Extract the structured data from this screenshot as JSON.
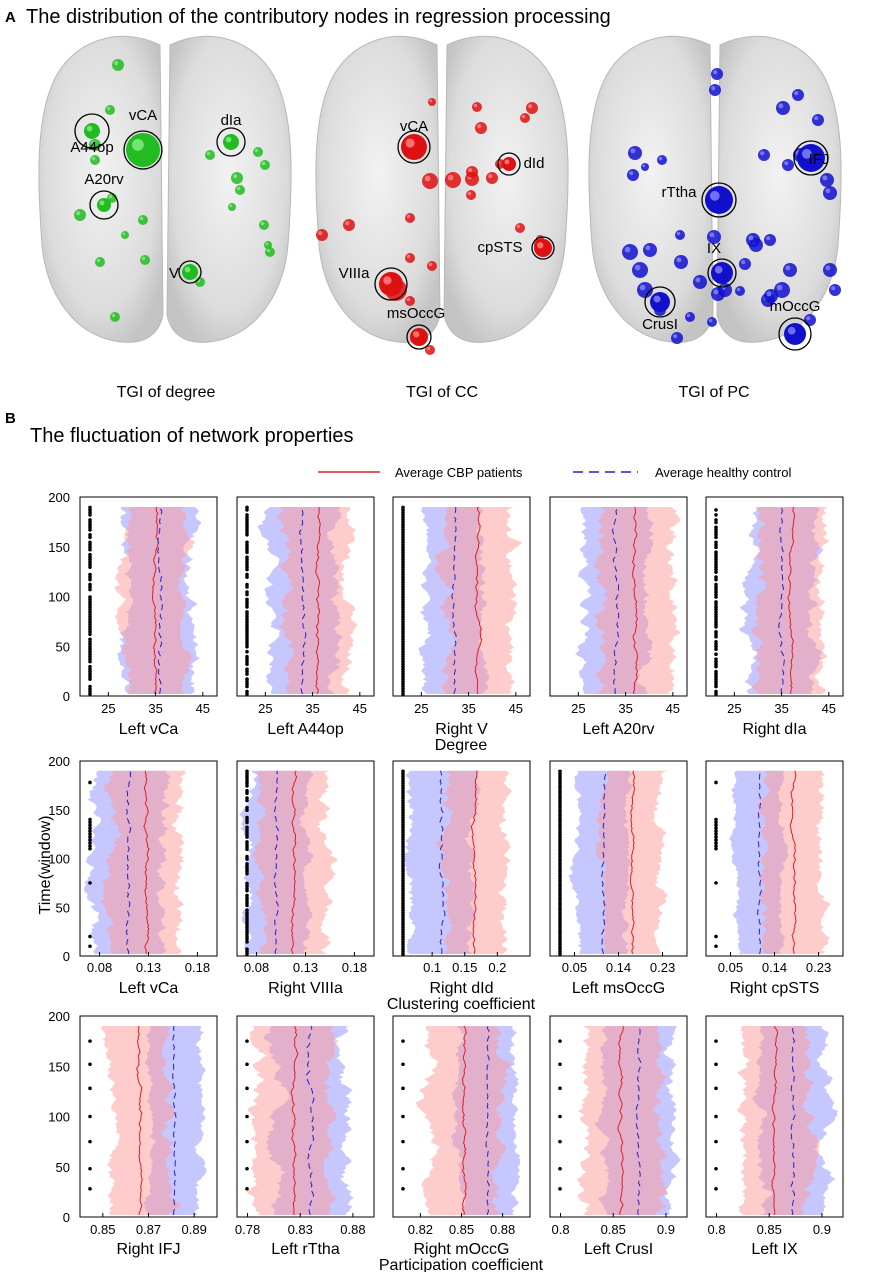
{
  "panel_a": {
    "letter": "A",
    "title": "The distribution of the contributory nodes in regression processing",
    "brains": [
      {
        "caption": "TGI of degree",
        "color": "#22bb22",
        "highlight": "#88ee88",
        "labels": [
          "vCA",
          "A44op",
          "A20rv",
          "dIa",
          "V"
        ]
      },
      {
        "caption": "TGI of CC",
        "color": "#dd1111",
        "highlight": "#ff8888",
        "labels": [
          "vCA",
          "dId",
          "cpSTS",
          "VIIIa",
          "msOccG"
        ]
      },
      {
        "caption": "TGI of PC",
        "color": "#1111cc",
        "highlight": "#8888ff",
        "labels": [
          "rTtha",
          "IFJ",
          "IX",
          "CrusI",
          "mOccG"
        ]
      }
    ]
  },
  "panel_b": {
    "letter": "B",
    "title": "The fluctuation of network properties",
    "legend": {
      "patients": "Average CBP patients",
      "controls": "Average healthy control",
      "patient_color": "#dd2222",
      "control_color": "#2222cc",
      "patient_fill": "#ff9999",
      "control_fill": "#9999ff"
    },
    "y_axis_label": "Time(window)"
  },
  "chart_data": [
    {
      "type": "line",
      "row_label": "Degree",
      "ylim": [
        0,
        200
      ],
      "yticks": [
        "0",
        "50",
        "100",
        "150",
        "200"
      ],
      "panels": [
        {
          "title": "Left vCa",
          "xticks": [
            "25",
            "35",
            "45"
          ],
          "xlim": [
            19,
            48
          ],
          "patient_mean": 35,
          "patient_sd": 6,
          "control_mean": 36,
          "control_sd": 7,
          "dots": "dense"
        },
        {
          "title": "Left A44op",
          "xticks": [
            "25",
            "35",
            "45"
          ],
          "xlim": [
            19,
            48
          ],
          "patient_mean": 36,
          "patient_sd": 7,
          "control_mean": 33,
          "control_sd": 7,
          "dots": "dense"
        },
        {
          "title": "Right V",
          "xticks": [
            "25",
            "35",
            "45"
          ],
          "xlim": [
            19,
            48
          ],
          "patient_mean": 37,
          "patient_sd": 7,
          "control_mean": 32,
          "control_sd": 6,
          "dots": "full"
        },
        {
          "title": "Left A20rv",
          "xticks": [
            "25",
            "35",
            "45"
          ],
          "xlim": [
            19,
            48
          ],
          "patient_mean": 37,
          "patient_sd": 8,
          "control_mean": 33,
          "control_sd": 7,
          "dots": "none"
        },
        {
          "title": "Right dIa",
          "xticks": [
            "25",
            "35",
            "45"
          ],
          "xlim": [
            19,
            48
          ],
          "patient_mean": 37,
          "patient_sd": 7,
          "control_mean": 35,
          "control_sd": 7,
          "dots": "dense"
        }
      ]
    },
    {
      "type": "line",
      "row_label": "Clustering coefficient",
      "ylim": [
        0,
        200
      ],
      "yticks": [
        "0",
        "50",
        "100",
        "150",
        "200"
      ],
      "panels": [
        {
          "title": "Left vCa",
          "xticks": [
            "0.08",
            "0.13",
            "0.18"
          ],
          "xlim": [
            0.06,
            0.2
          ],
          "patient_mean": 0.128,
          "patient_sd": 0.035,
          "control_mean": 0.11,
          "control_sd": 0.035,
          "dots": "sparse_mid"
        },
        {
          "title": "Right VIIIa",
          "xticks": [
            "0.08",
            "0.13",
            "0.18"
          ],
          "xlim": [
            0.06,
            0.2
          ],
          "patient_mean": 0.118,
          "patient_sd": 0.035,
          "control_mean": 0.1,
          "control_sd": 0.03,
          "dots": "dense"
        },
        {
          "title": "Right dId",
          "xticks": [
            "0.1",
            "0.15",
            "0.2"
          ],
          "xlim": [
            0.04,
            0.25
          ],
          "patient_mean": 0.165,
          "patient_sd": 0.045,
          "control_mean": 0.115,
          "control_sd": 0.05,
          "dots": "full"
        },
        {
          "title": "Left msOccG",
          "xticks": [
            "0.05",
            "0.14",
            "0.23"
          ],
          "xlim": [
            0.0,
            0.28
          ],
          "patient_mean": 0.17,
          "patient_sd": 0.06,
          "control_mean": 0.11,
          "control_sd": 0.05,
          "dots": "full"
        },
        {
          "title": "Right cpSTS",
          "xticks": [
            "0.05",
            "0.14",
            "0.23"
          ],
          "xlim": [
            0.0,
            0.28
          ],
          "patient_mean": 0.18,
          "patient_sd": 0.06,
          "control_mean": 0.11,
          "control_sd": 0.045,
          "dots": "sparse_mid"
        }
      ]
    },
    {
      "type": "line",
      "row_label": "Participation coefficient",
      "ylim": [
        0,
        200
      ],
      "yticks": [
        "0",
        "50",
        "100",
        "150",
        "200"
      ],
      "panels": [
        {
          "title": "Right IFJ",
          "xticks": [
            "0.85",
            "0.87",
            "0.89"
          ],
          "xlim": [
            0.84,
            0.9
          ],
          "patient_mean": 0.866,
          "patient_sd": 0.013,
          "control_mean": 0.881,
          "control_sd": 0.011,
          "dots": "few"
        },
        {
          "title": "Left rTtha",
          "xticks": [
            "0.78",
            "0.83",
            "0.88"
          ],
          "xlim": [
            0.77,
            0.9
          ],
          "patient_mean": 0.825,
          "patient_sd": 0.035,
          "control_mean": 0.84,
          "control_sd": 0.035,
          "dots": "few"
        },
        {
          "title": "Right mOccG",
          "xticks": [
            "0.82",
            "0.85",
            "0.88"
          ],
          "xlim": [
            0.8,
            0.9
          ],
          "patient_mean": 0.852,
          "patient_sd": 0.025,
          "control_mean": 0.869,
          "control_sd": 0.02,
          "dots": "few"
        },
        {
          "title": "Left CrusI",
          "xticks": [
            "0.8",
            "0.85",
            "0.9"
          ],
          "xlim": [
            0.79,
            0.92
          ],
          "patient_mean": 0.857,
          "patient_sd": 0.035,
          "control_mean": 0.874,
          "control_sd": 0.03,
          "dots": "few"
        },
        {
          "title": "Left IX",
          "xticks": [
            "0.8",
            "0.85",
            "0.9"
          ],
          "xlim": [
            0.79,
            0.92
          ],
          "patient_mean": 0.855,
          "patient_sd": 0.03,
          "control_mean": 0.872,
          "control_sd": 0.03,
          "dots": "few"
        }
      ]
    }
  ]
}
